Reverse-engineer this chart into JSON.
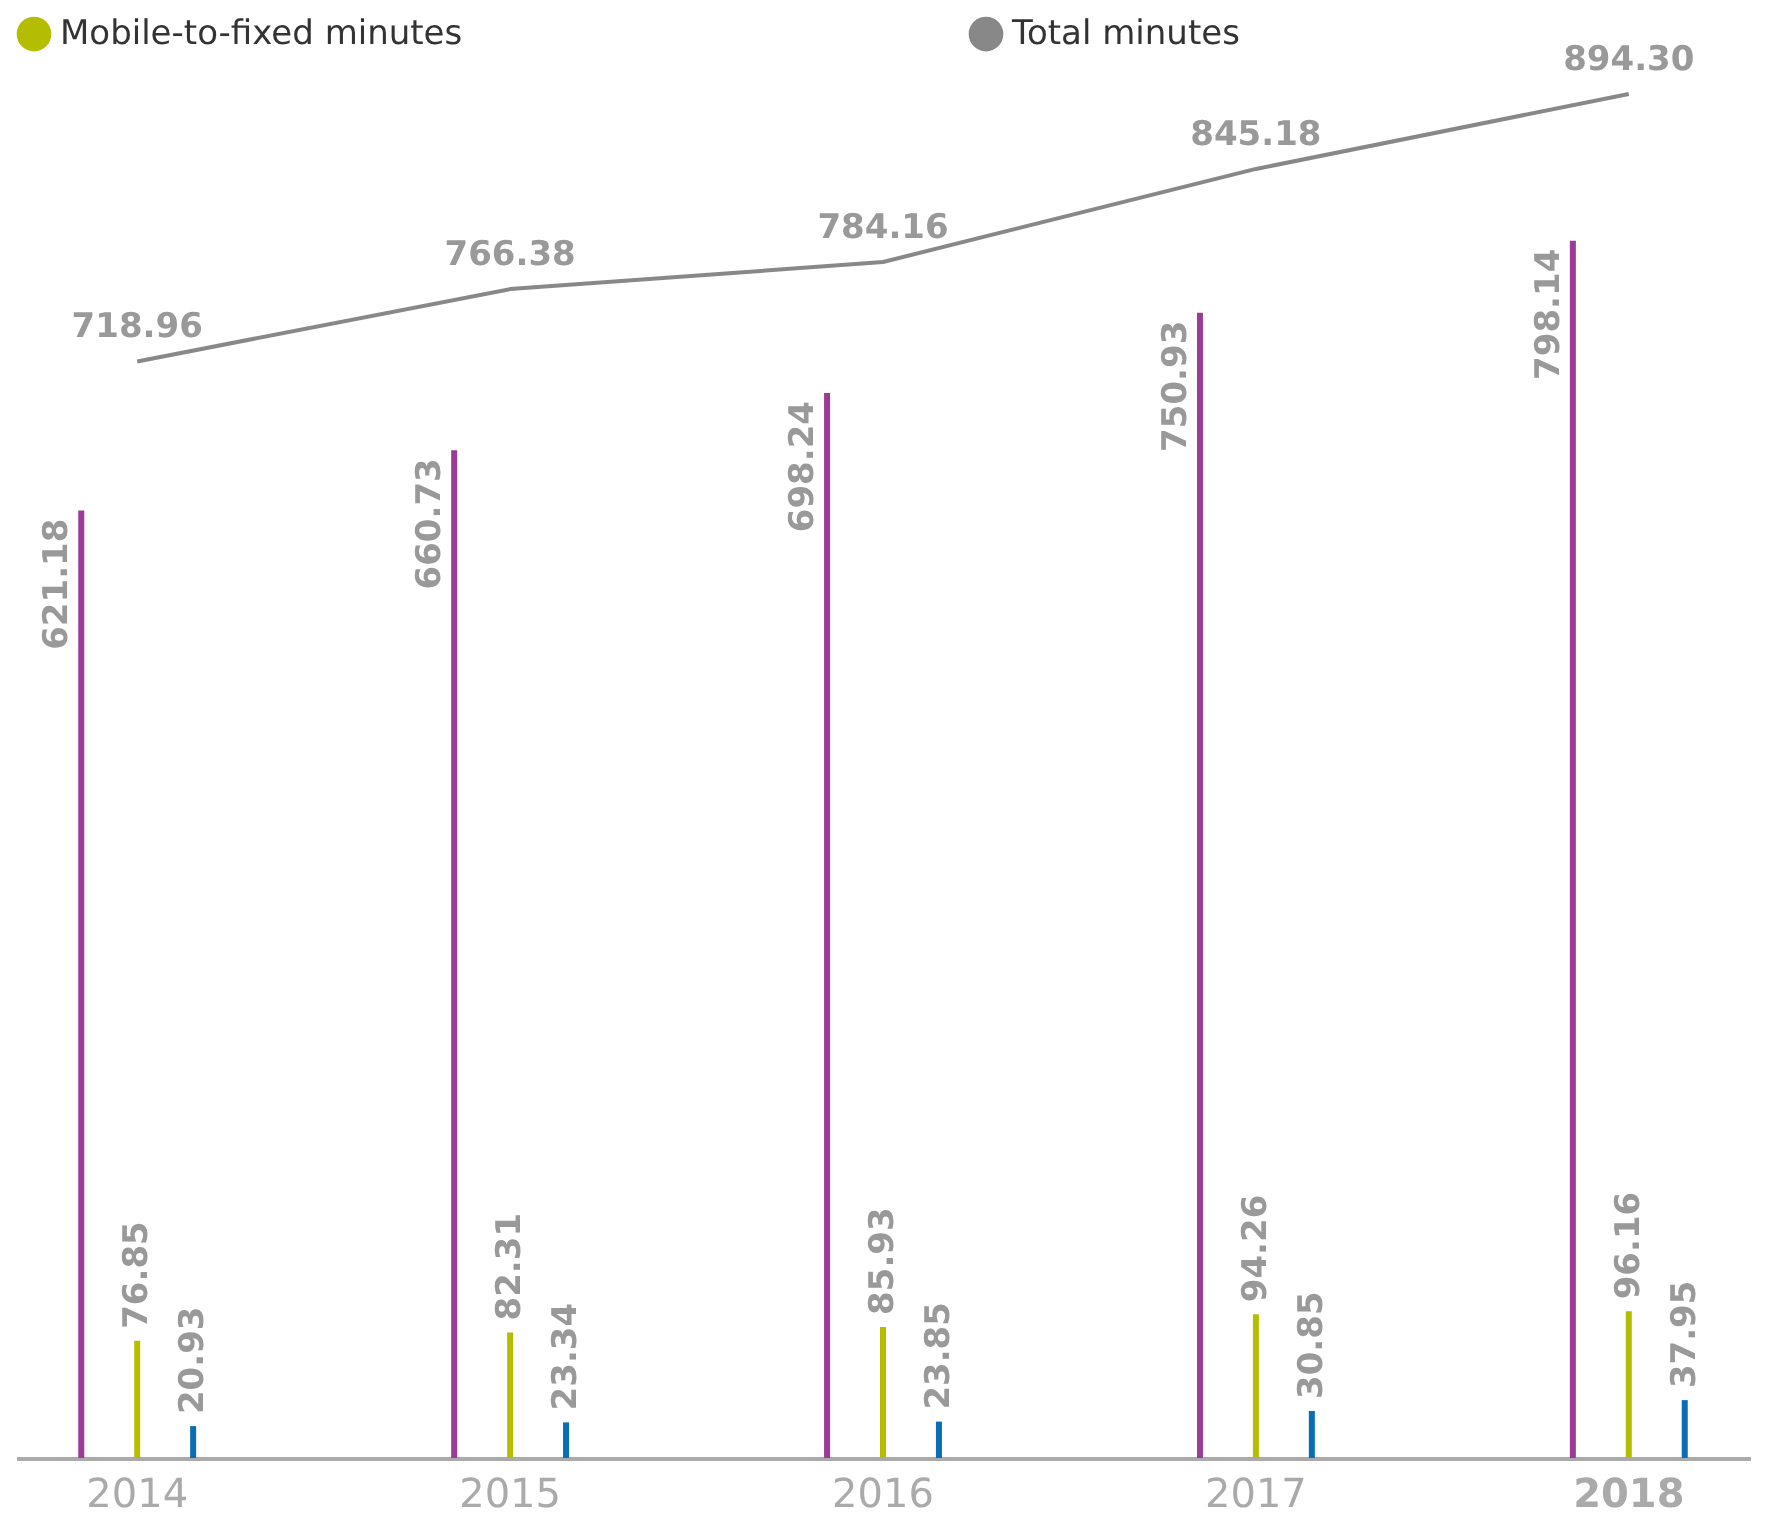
{
  "chart_data": {
    "type": "bar",
    "categories": [
      "2014",
      "2015",
      "2016",
      "2017",
      "2018"
    ],
    "series": [
      {
        "color": "#9b3b96",
        "values": [
          621.18,
          660.73,
          698.24,
          750.93,
          798.14
        ]
      },
      {
        "name": "Mobile-to-fixed minutes",
        "color": "#b5bd00",
        "values": [
          76.85,
          82.31,
          85.93,
          94.26,
          96.16
        ]
      },
      {
        "color": "#0a6eb4",
        "values": [
          20.93,
          23.34,
          23.85,
          30.85,
          37.95
        ]
      },
      {
        "name": "Total minutes",
        "type": "line",
        "color": "#888888",
        "values": [
          718.96,
          766.38,
          784.16,
          845.18,
          894.3
        ],
        "value_labels": [
          "718.96",
          "766.38",
          "784.16",
          "845.18",
          "894.30"
        ]
      }
    ],
    "data_labels": true,
    "legend": "top",
    "grid": false,
    "tick_labels": "x",
    "marker": "none",
    "line_style": "solid"
  }
}
